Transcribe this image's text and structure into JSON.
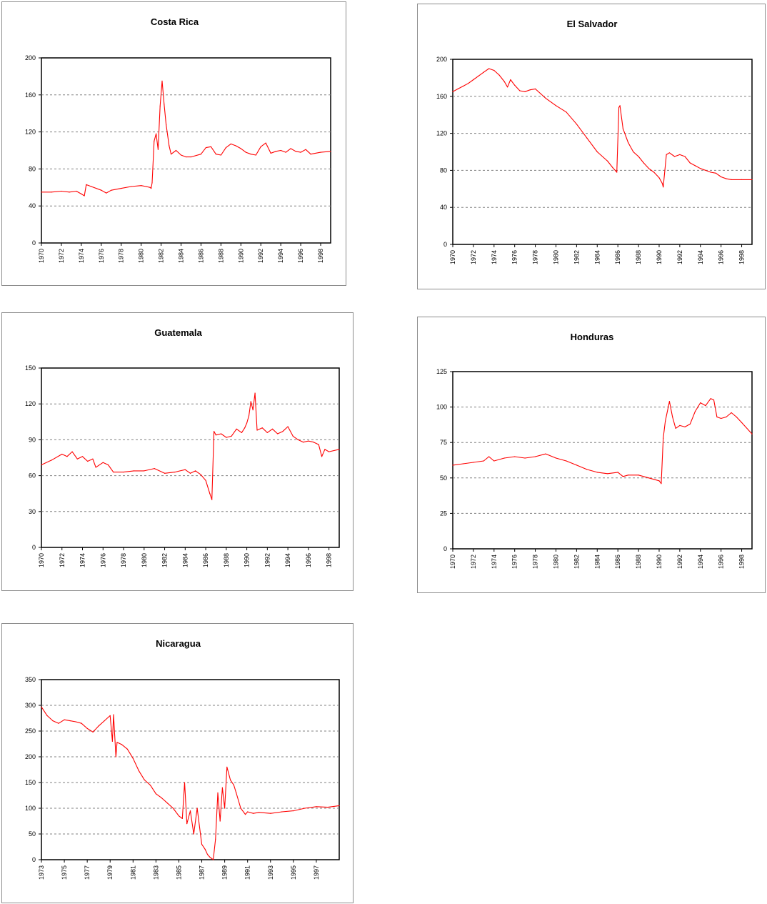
{
  "colors": {
    "series": "#ff0000",
    "frame": "#000000",
    "grid": "#808080"
  },
  "chart_data": [
    {
      "type": "line",
      "title": "Costa Rica",
      "xlabel": "",
      "ylabel": "",
      "xlim": [
        1970,
        1999
      ],
      "ylim": [
        0,
        200
      ],
      "yticks": [
        "0",
        "40",
        "80",
        "120",
        "160",
        "200"
      ],
      "xticks": [
        "1970",
        "1972",
        "1974",
        "1976",
        "1978",
        "1980",
        "1982",
        "1984",
        "1986",
        "1988",
        "1990",
        "1992",
        "1994",
        "1996",
        "1998"
      ],
      "grid": true,
      "legend": "none",
      "series": [
        {
          "x": [
            1970,
            1971,
            1972,
            1972.8,
            1973.5,
            1974,
            1974.3,
            1974.5,
            1975,
            1976,
            1976.5,
            1977,
            1978,
            1979,
            1980,
            1980.5,
            1980.9,
            1981,
            1981.1,
            1981.3,
            1981.5,
            1981.7,
            1981.9,
            1982.1,
            1982.3,
            1982.5,
            1982.8,
            1983,
            1983.5,
            1984,
            1984.5,
            1985,
            1986,
            1986.5,
            1987,
            1987.5,
            1988,
            1988.5,
            1989,
            1989.5,
            1990,
            1990.5,
            1991,
            1991.5,
            1992,
            1992.5,
            1993,
            1993.5,
            1994,
            1994.5,
            1995,
            1995.5,
            1996,
            1996.5,
            1997,
            1998,
            1999
          ],
          "values": [
            55,
            55,
            56,
            55,
            56,
            53,
            51,
            63,
            61,
            57,
            54,
            57,
            59,
            61,
            62,
            61,
            60,
            59,
            65,
            110,
            118,
            101,
            148,
            175,
            150,
            128,
            105,
            96,
            100,
            95,
            93,
            93,
            96,
            103,
            104,
            96,
            95,
            103,
            107,
            105,
            102,
            98,
            96,
            95,
            104,
            108,
            97,
            99,
            100,
            98,
            102,
            99,
            98,
            101,
            96,
            98,
            99
          ]
        }
      ]
    },
    {
      "type": "line",
      "title": "El Salvador",
      "xlabel": "",
      "ylabel": "",
      "xlim": [
        1970,
        1999
      ],
      "ylim": [
        0,
        200
      ],
      "yticks": [
        "0",
        "40",
        "80",
        "120",
        "160",
        "200"
      ],
      "xticks": [
        "1970",
        "1972",
        "1974",
        "1976",
        "1978",
        "1980",
        "1982",
        "1984",
        "1986",
        "1988",
        "1990",
        "1992",
        "1994",
        "1996",
        "1998"
      ],
      "grid": true,
      "legend": "none",
      "series": [
        {
          "x": [
            1970,
            1970.5,
            1971,
            1971.5,
            1972,
            1972.5,
            1973,
            1973.5,
            1974,
            1974.5,
            1975,
            1975.3,
            1975.6,
            1976,
            1976.5,
            1977,
            1977.5,
            1978,
            1978.5,
            1979,
            1980,
            1981,
            1982,
            1983,
            1984,
            1985,
            1985.5,
            1985.9,
            1986.1,
            1986.2,
            1986.5,
            1987,
            1987.5,
            1988,
            1988.5,
            1989,
            1989.5,
            1990,
            1990.3,
            1990.4,
            1990.7,
            1991,
            1991.5,
            1992,
            1992.5,
            1993,
            1993.5,
            1994,
            1994.5,
            1995,
            1995.5,
            1996,
            1996.5,
            1997,
            1998,
            1999
          ],
          "values": [
            165,
            168,
            171,
            174,
            178,
            182,
            186,
            190,
            188,
            183,
            176,
            170,
            178,
            172,
            166,
            165,
            167,
            168,
            163,
            158,
            150,
            143,
            130,
            115,
            100,
            90,
            83,
            78,
            148,
            150,
            125,
            110,
            100,
            95,
            88,
            82,
            78,
            72,
            66,
            62,
            97,
            99,
            95,
            97,
            95,
            88,
            85,
            82,
            80,
            78,
            77,
            73,
            71,
            70,
            70,
            70
          ],
          "marker_labels": []
        }
      ]
    },
    {
      "type": "line",
      "title": "Guatemala",
      "xlabel": "",
      "ylabel": "",
      "xlim": [
        1970,
        1999
      ],
      "ylim": [
        0,
        150
      ],
      "yticks": [
        "0",
        "30",
        "60",
        "90",
        "120",
        "150"
      ],
      "xticks": [
        "1970",
        "1972",
        "1974",
        "1976",
        "1978",
        "1980",
        "1982",
        "1984",
        "1986",
        "1988",
        "1990",
        "1992",
        "1994",
        "1996",
        "1998"
      ],
      "grid": true,
      "legend": "none",
      "series": [
        {
          "x": [
            1970,
            1971,
            1972,
            1972.5,
            1973,
            1973.5,
            1974,
            1974.5,
            1975,
            1975.3,
            1976,
            1976.5,
            1977,
            1978,
            1979,
            1980,
            1981,
            1982,
            1983,
            1984,
            1984.5,
            1985,
            1985.5,
            1986,
            1986.4,
            1986.6,
            1986.8,
            1987,
            1987.5,
            1988,
            1988.5,
            1989,
            1989.5,
            1989.8,
            1990,
            1990.2,
            1990.4,
            1990.6,
            1990.8,
            1991,
            1991.5,
            1992,
            1992.5,
            1993,
            1993.5,
            1994,
            1994.5,
            1995,
            1995.5,
            1996,
            1996.5,
            1997,
            1997.3,
            1997.6,
            1998,
            1999
          ],
          "values": [
            69,
            73,
            78,
            76,
            80,
            74,
            76,
            72,
            74,
            67,
            71,
            69,
            63,
            63,
            64,
            64,
            66,
            62,
            63,
            65,
            62,
            64,
            61,
            56,
            45,
            40,
            97,
            94,
            95,
            92,
            93,
            99,
            96,
            100,
            104,
            110,
            122,
            115,
            129,
            98,
            100,
            96,
            99,
            95,
            97,
            101,
            93,
            90,
            88,
            89,
            88,
            86,
            76,
            82,
            80,
            82
          ]
        }
      ]
    },
    {
      "type": "line",
      "title": "Honduras",
      "xlabel": "",
      "ylabel": "",
      "xlim": [
        1970,
        1999
      ],
      "ylim": [
        0,
        125
      ],
      "yticks": [
        "0",
        "25",
        "50",
        "75",
        "100",
        "125"
      ],
      "xticks": [
        "1970",
        "1972",
        "1974",
        "1976",
        "1978",
        "1980",
        "1982",
        "1984",
        "1986",
        "1988",
        "1990",
        "1992",
        "1994",
        "1996",
        "1998"
      ],
      "grid": true,
      "legend": "none",
      "series": [
        {
          "x": [
            1970,
            1971,
            1972,
            1973,
            1973.5,
            1974,
            1975,
            1976,
            1977,
            1978,
            1979,
            1980,
            1981,
            1982,
            1983,
            1984,
            1985,
            1986,
            1986.5,
            1987,
            1988,
            1989,
            1990,
            1990.2,
            1990.4,
            1990.6,
            1991,
            1991.3,
            1991.6,
            1992,
            1992.5,
            1993,
            1993.5,
            1994,
            1994.5,
            1995,
            1995.3,
            1995.6,
            1996,
            1996.5,
            1997,
            1997.5,
            1998,
            1999
          ],
          "values": [
            59,
            60,
            61,
            62,
            65,
            62,
            64,
            65,
            64,
            65,
            67,
            64,
            62,
            59,
            56,
            54,
            53,
            54,
            51,
            52,
            52,
            50,
            48,
            46,
            78,
            90,
            104,
            93,
            85,
            87,
            86,
            88,
            97,
            103,
            101,
            106,
            105,
            93,
            92,
            93,
            96,
            93,
            89,
            81
          ]
        }
      ]
    },
    {
      "type": "line",
      "title": "Nicaragua",
      "xlabel": "",
      "ylabel": "",
      "xlim": [
        1973,
        1999
      ],
      "ylim": [
        0,
        350
      ],
      "yticks": [
        "0",
        "50",
        "100",
        "150",
        "200",
        "250",
        "300",
        "350"
      ],
      "xticks": [
        "1973",
        "1975",
        "1977",
        "1979",
        "1981",
        "1983",
        "1985",
        "1987",
        "1989",
        "1991",
        "1993",
        "1995",
        "1997"
      ],
      "grid": true,
      "legend": "none",
      "series": [
        {
          "x": [
            1973,
            1973.5,
            1974,
            1974.5,
            1975,
            1975.5,
            1976,
            1976.5,
            1977,
            1977.5,
            1978,
            1978.5,
            1979,
            1979.2,
            1979.3,
            1979.5,
            1979.6,
            1980,
            1980.5,
            1981,
            1981.5,
            1982,
            1982.5,
            1983,
            1983.5,
            1984,
            1984.5,
            1985,
            1985.3,
            1985.5,
            1985.7,
            1986,
            1986.3,
            1986.6,
            1987,
            1987.3,
            1987.5,
            1987.7,
            1988,
            1988.2,
            1988.4,
            1988.6,
            1988.8,
            1989,
            1989.2,
            1989.5,
            1989.8,
            1990,
            1990.4,
            1990.8,
            1991,
            1991.5,
            1992,
            1993,
            1994,
            1995,
            1996,
            1997,
            1998,
            1999
          ],
          "values": [
            297,
            280,
            270,
            265,
            272,
            270,
            268,
            265,
            255,
            248,
            260,
            270,
            280,
            230,
            282,
            200,
            228,
            224,
            215,
            197,
            173,
            155,
            145,
            128,
            120,
            110,
            100,
            85,
            80,
            150,
            70,
            95,
            50,
            100,
            30,
            20,
            10,
            5,
            0,
            40,
            130,
            75,
            140,
            100,
            180,
            155,
            145,
            130,
            100,
            88,
            93,
            90,
            92,
            90,
            93,
            95,
            100,
            103,
            102,
            105
          ]
        }
      ]
    }
  ]
}
